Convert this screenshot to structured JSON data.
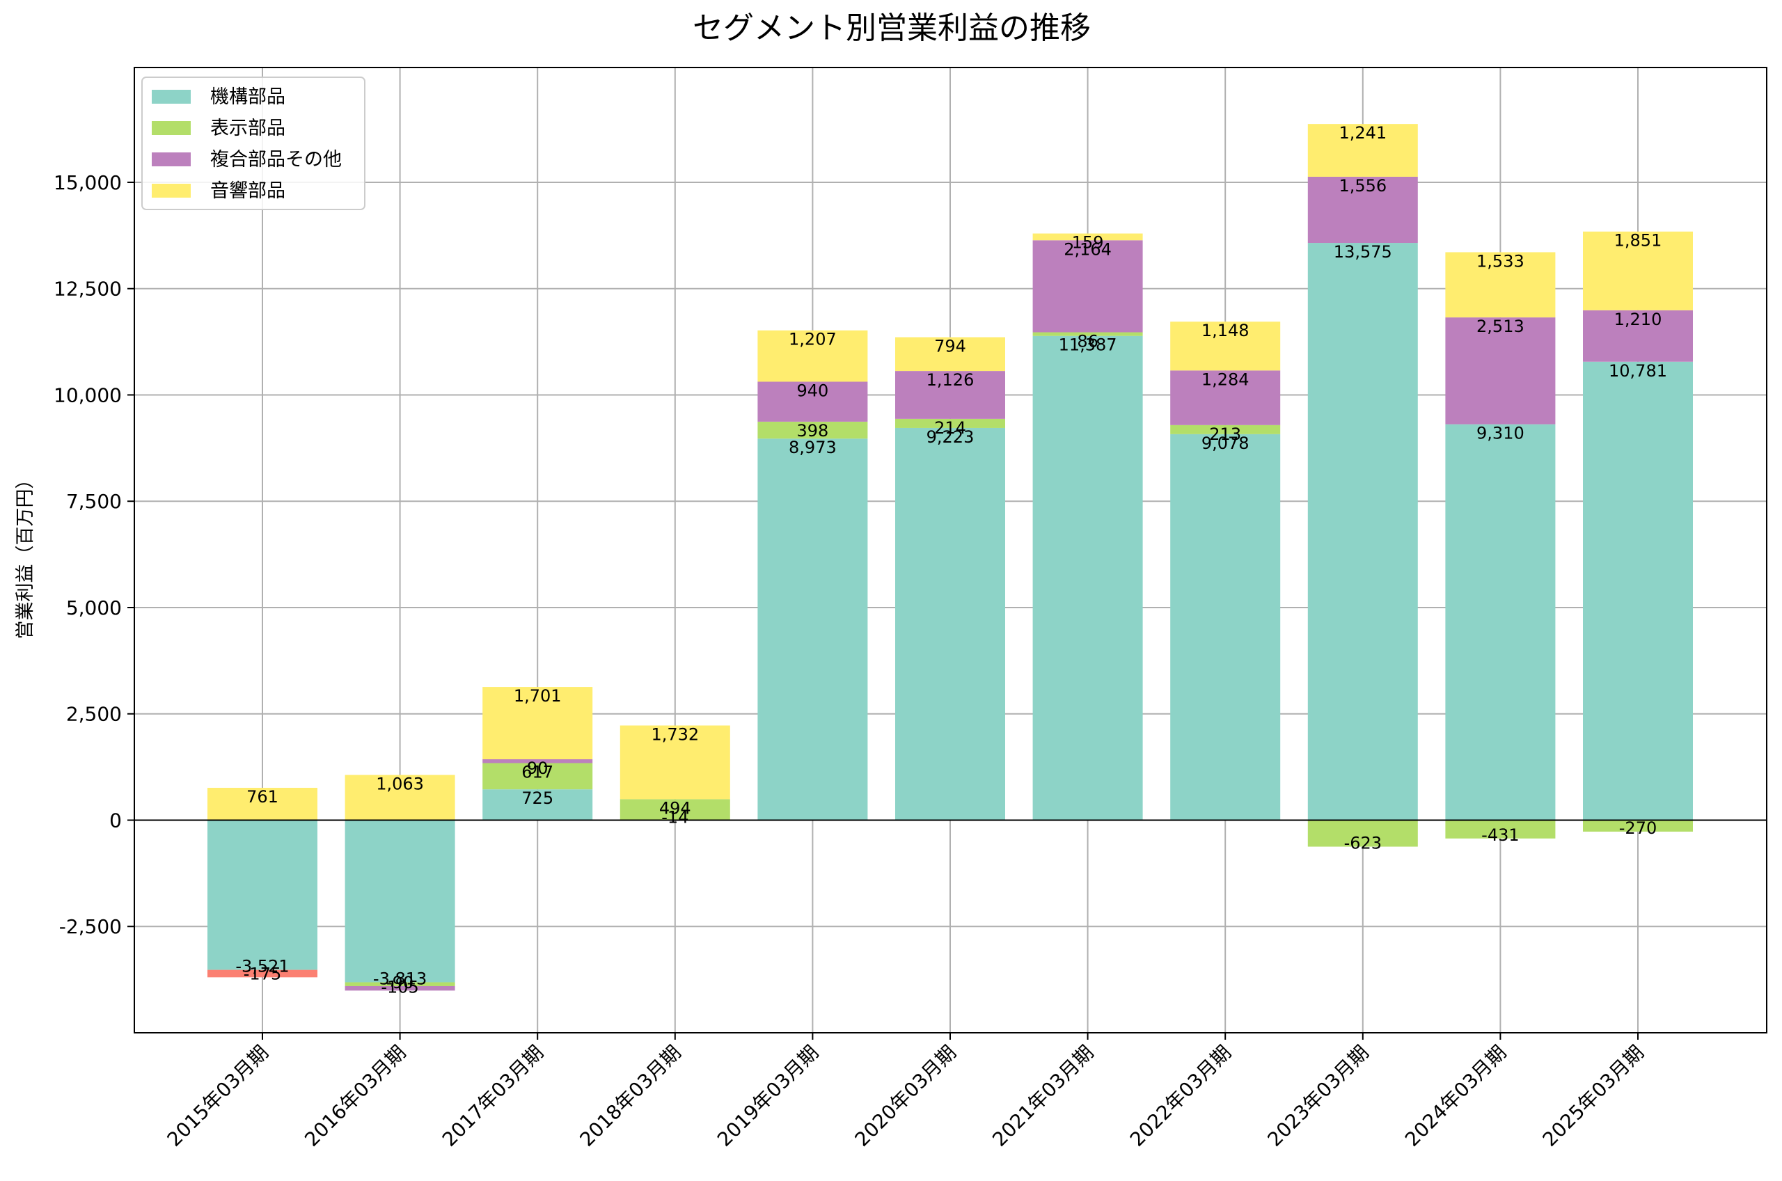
{
  "chart_data": {
    "type": "bar",
    "stacked": true,
    "title": "セグメント別営業利益の推移",
    "xlabel": "",
    "ylabel": "営業利益（百万円）",
    "ylim": [
      -5000,
      17700
    ],
    "yticks": [
      -2500,
      0,
      2500,
      5000,
      7500,
      10000,
      12500,
      15000
    ],
    "ytick_labels": [
      "-2,500",
      "0",
      "2,500",
      "5,000",
      "7,500",
      "10,000",
      "12,500",
      "15,000"
    ],
    "grid": true,
    "legend_position": "top-left",
    "categories": [
      "2015年03月期",
      "2016年03月期",
      "2017年03月期",
      "2018年03月期",
      "2019年03月期",
      "2020年03月期",
      "2021年03月期",
      "2022年03月期",
      "2023年03月期",
      "2024年03月期",
      "2025年03月期"
    ],
    "series": [
      {
        "name": "機構部品",
        "color": "#8dd3c7",
        "values": [
          -3521,
          -3813,
          725,
          -14,
          8973,
          9223,
          11387,
          9078,
          13575,
          9310,
          10781
        ],
        "labels": [
          "-3,521",
          "-3,813",
          "725",
          "-14",
          "8,973",
          "9,223",
          "11,387",
          "9,078",
          "13,575",
          "9,310",
          "10,781"
        ]
      },
      {
        "name": "表示部品",
        "color": "#b3de69",
        "values": [
          null,
          -90,
          617,
          494,
          398,
          214,
          86,
          213,
          -623,
          -431,
          -270
        ],
        "labels": [
          "",
          "-90",
          "617",
          "494",
          "398",
          "214",
          "86",
          "213",
          "-623",
          "-431",
          "-270"
        ]
      },
      {
        "name": "複合部品その他",
        "color": "#bc80bd",
        "values": [
          null,
          -105,
          90,
          null,
          940,
          1126,
          2164,
          1284,
          1556,
          2513,
          1210
        ],
        "labels": [
          "",
          "-105",
          "90",
          "",
          "940",
          "1,126",
          "2,164",
          "1,284",
          "1,556",
          "2,513",
          "1,210"
        ]
      },
      {
        "name": "音響部品",
        "color": "#ffed6f",
        "values": [
          761,
          1063,
          1701,
          1732,
          1207,
          794,
          159,
          1148,
          1241,
          1533,
          1851
        ],
        "labels": [
          "761",
          "1,063",
          "1,701",
          "1,732",
          "1,207",
          "794",
          "159",
          "1,148",
          "1,241",
          "1,533",
          "1,851"
        ]
      }
    ],
    "extra_segments": [
      {
        "category_index": 0,
        "value": -175,
        "label": "-175",
        "color": "#fb8072"
      }
    ]
  }
}
